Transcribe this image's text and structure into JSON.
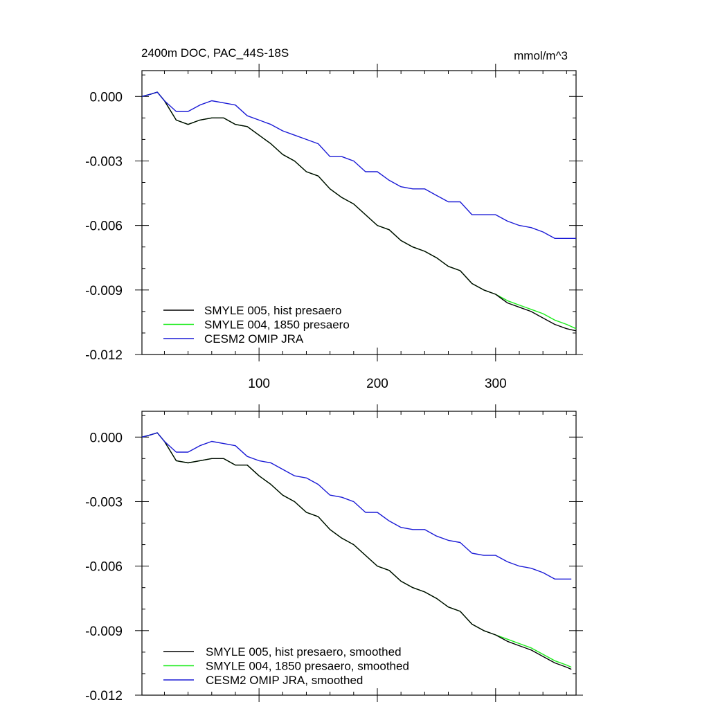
{
  "figure": {
    "title_left": "2400m DOC, PAC_44S-18S",
    "title_right": "mmol/m^3"
  },
  "chart_data": [
    {
      "type": "line",
      "title": "2400m DOC, PAC_44S-18S",
      "units": "mmol/m^3",
      "xlim": [
        1,
        368
      ],
      "ylim": [
        -0.012,
        0.0012
      ],
      "xticks": [
        100,
        200,
        300
      ],
      "xtick_labels": [
        "100",
        "200",
        "300"
      ],
      "yticks": [
        0.0,
        -0.003,
        -0.006,
        -0.009,
        -0.012
      ],
      "ytick_labels": [
        "0.000",
        "-0.003",
        "-0.006",
        "-0.009",
        "-0.012"
      ],
      "grid": false,
      "legend_position": "bottom-left",
      "series": [
        {
          "name": "SMYLE 005, hist presaero",
          "color": "#000000",
          "x": [
            1,
            8,
            14,
            20,
            30,
            40,
            50,
            60,
            70,
            80,
            90,
            100,
            110,
            120,
            130,
            140,
            150,
            160,
            170,
            180,
            190,
            200,
            210,
            220,
            230,
            240,
            250,
            260,
            270,
            280,
            290,
            300,
            310,
            320,
            330,
            340,
            350,
            360,
            368
          ],
          "y": [
            0.0,
            0.0001,
            0.0002,
            -0.0002,
            -0.0011,
            -0.0013,
            -0.0011,
            -0.001,
            -0.001,
            -0.0013,
            -0.0014,
            -0.0018,
            -0.0022,
            -0.0027,
            -0.003,
            -0.0035,
            -0.0037,
            -0.0043,
            -0.0047,
            -0.005,
            -0.0055,
            -0.006,
            -0.0062,
            -0.0067,
            -0.007,
            -0.0072,
            -0.0075,
            -0.0079,
            -0.0081,
            -0.0087,
            -0.009,
            -0.0092,
            -0.0096,
            -0.0098,
            -0.01,
            -0.0103,
            -0.0106,
            -0.0108,
            -0.0109
          ]
        },
        {
          "name": "SMYLE 004, 1850 presaero",
          "color": "#1aeb1a",
          "x": [
            1,
            8,
            14,
            20,
            30,
            40,
            50,
            60,
            70,
            80,
            90,
            100,
            110,
            120,
            130,
            140,
            150,
            160,
            170,
            180,
            190,
            200,
            210,
            220,
            230,
            240,
            250,
            260,
            270,
            280,
            290,
            300,
            310,
            320,
            330,
            340,
            350,
            360,
            368
          ],
          "y": [
            0.0,
            0.0001,
            0.0002,
            -0.0002,
            -0.0011,
            -0.0013,
            -0.0011,
            -0.001,
            -0.001,
            -0.0013,
            -0.0014,
            -0.0018,
            -0.0022,
            -0.0027,
            -0.003,
            -0.0035,
            -0.0037,
            -0.0043,
            -0.0047,
            -0.005,
            -0.0055,
            -0.006,
            -0.0062,
            -0.0067,
            -0.007,
            -0.0072,
            -0.0075,
            -0.0079,
            -0.0081,
            -0.0087,
            -0.009,
            -0.0092,
            -0.0095,
            -0.0097,
            -0.0099,
            -0.0101,
            -0.0104,
            -0.0106,
            -0.0108
          ]
        },
        {
          "name": "CESM2 OMIP JRA",
          "color": "#1a1ad6",
          "x": [
            1,
            8,
            14,
            20,
            30,
            40,
            50,
            60,
            70,
            80,
            90,
            100,
            110,
            120,
            130,
            140,
            150,
            160,
            170,
            180,
            190,
            200,
            210,
            220,
            230,
            240,
            250,
            260,
            270,
            280,
            290,
            300,
            310,
            320,
            330,
            340,
            350,
            360,
            368
          ],
          "y": [
            0.0,
            0.0001,
            0.0002,
            -0.0002,
            -0.0007,
            -0.0007,
            -0.0004,
            -0.0002,
            -0.0003,
            -0.0004,
            -0.0009,
            -0.0011,
            -0.0013,
            -0.0016,
            -0.0018,
            -0.002,
            -0.0022,
            -0.0028,
            -0.0028,
            -0.003,
            -0.0035,
            -0.0035,
            -0.0039,
            -0.0042,
            -0.0043,
            -0.0043,
            -0.0046,
            -0.0049,
            -0.0049,
            -0.0055,
            -0.0055,
            -0.0055,
            -0.0058,
            -0.006,
            -0.0061,
            -0.0063,
            -0.0066,
            -0.0066,
            -0.0066
          ]
        }
      ]
    },
    {
      "type": "line",
      "title": "",
      "xlim": [
        1,
        368
      ],
      "ylim": [
        -0.012,
        0.0012
      ],
      "xticks": [
        100,
        200,
        300
      ],
      "xtick_labels": [],
      "yticks": [
        0.0,
        -0.003,
        -0.006,
        -0.009,
        -0.012
      ],
      "ytick_labels": [
        "0.000",
        "-0.003",
        "-0.006",
        "-0.009",
        "-0.012"
      ],
      "grid": false,
      "legend_position": "bottom-left",
      "series": [
        {
          "name": "SMYLE 005, hist presaero, smoothed",
          "color": "#000000",
          "x": [
            1,
            8,
            14,
            20,
            30,
            40,
            50,
            60,
            70,
            80,
            90,
            100,
            110,
            120,
            130,
            140,
            150,
            160,
            170,
            180,
            190,
            200,
            210,
            220,
            230,
            240,
            250,
            260,
            270,
            280,
            290,
            300,
            310,
            320,
            330,
            340,
            350,
            360,
            364
          ],
          "y": [
            0.0,
            0.0001,
            0.0002,
            -0.0002,
            -0.0011,
            -0.0012,
            -0.0011,
            -0.001,
            -0.001,
            -0.0013,
            -0.0013,
            -0.0018,
            -0.0022,
            -0.0027,
            -0.003,
            -0.0035,
            -0.0037,
            -0.0043,
            -0.0047,
            -0.005,
            -0.0055,
            -0.006,
            -0.0062,
            -0.0067,
            -0.007,
            -0.0072,
            -0.0075,
            -0.0079,
            -0.0081,
            -0.0087,
            -0.009,
            -0.0092,
            -0.0095,
            -0.0097,
            -0.0099,
            -0.0102,
            -0.0105,
            -0.0107,
            -0.0108
          ]
        },
        {
          "name": "SMYLE 004, 1850 presaero, smoothed",
          "color": "#1aeb1a",
          "x": [
            1,
            8,
            14,
            20,
            30,
            40,
            50,
            60,
            70,
            80,
            90,
            100,
            110,
            120,
            130,
            140,
            150,
            160,
            170,
            180,
            190,
            200,
            210,
            220,
            230,
            240,
            250,
            260,
            270,
            280,
            290,
            300,
            310,
            320,
            330,
            340,
            350,
            360,
            364
          ],
          "y": [
            0.0,
            0.0001,
            0.0002,
            -0.0002,
            -0.0011,
            -0.0012,
            -0.0011,
            -0.001,
            -0.001,
            -0.0013,
            -0.0013,
            -0.0018,
            -0.0022,
            -0.0027,
            -0.003,
            -0.0035,
            -0.0037,
            -0.0043,
            -0.0047,
            -0.005,
            -0.0055,
            -0.006,
            -0.0062,
            -0.0067,
            -0.007,
            -0.0072,
            -0.0075,
            -0.0079,
            -0.0081,
            -0.0087,
            -0.009,
            -0.0092,
            -0.0094,
            -0.0096,
            -0.0098,
            -0.0101,
            -0.0104,
            -0.0106,
            -0.0107
          ]
        },
        {
          "name": "CESM2 OMIP JRA, smoothed",
          "color": "#1a1ad6",
          "x": [
            1,
            8,
            14,
            20,
            30,
            40,
            50,
            60,
            70,
            80,
            90,
            100,
            110,
            120,
            130,
            140,
            150,
            160,
            170,
            180,
            190,
            200,
            210,
            220,
            230,
            240,
            250,
            260,
            270,
            280,
            290,
            300,
            310,
            320,
            330,
            340,
            350,
            360,
            364
          ],
          "y": [
            0.0,
            0.0001,
            0.0002,
            -0.0002,
            -0.0007,
            -0.0007,
            -0.0004,
            -0.0002,
            -0.0003,
            -0.0004,
            -0.0009,
            -0.0011,
            -0.0012,
            -0.0015,
            -0.0018,
            -0.0019,
            -0.0022,
            -0.0027,
            -0.0028,
            -0.003,
            -0.0035,
            -0.0035,
            -0.0039,
            -0.0042,
            -0.0043,
            -0.0043,
            -0.0046,
            -0.0048,
            -0.0049,
            -0.0054,
            -0.0055,
            -0.0055,
            -0.0058,
            -0.006,
            -0.0061,
            -0.0063,
            -0.0066,
            -0.0066,
            -0.0066
          ]
        }
      ]
    }
  ]
}
